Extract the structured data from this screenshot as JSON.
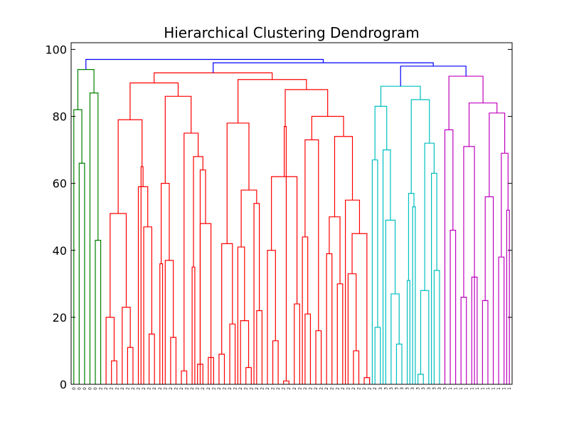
{
  "chart_data": {
    "type": "dendrogram",
    "title": "Hierarchical Clustering Dendrogram",
    "xlabel": "",
    "ylabel": "",
    "ylim": [
      0,
      102
    ],
    "yticks": [
      0,
      20,
      40,
      60,
      80,
      100
    ],
    "grid": false,
    "leaf_labels": [
      "0",
      "0",
      "0",
      "0",
      "0",
      "2",
      "2",
      "2",
      "2",
      "2",
      "2",
      "2",
      "2",
      "2",
      "2",
      "2",
      "2",
      "2",
      "2",
      "2",
      "2",
      "2",
      "2",
      "2",
      "2",
      "2",
      "2",
      "2",
      "2",
      "2",
      "2",
      "2",
      "2",
      "2",
      "2",
      "2",
      "2",
      "2",
      "2",
      "2",
      "2",
      "2",
      "2",
      "2",
      "2",
      "2",
      "2",
      "2",
      "2",
      "2",
      "2",
      "2",
      "2",
      "2",
      "2",
      "2",
      "2",
      "3",
      "3",
      "3",
      "3",
      "3",
      "3",
      "3",
      "3",
      "3",
      "3",
      "3",
      "3",
      "3",
      "1",
      "1",
      "1",
      "1",
      "1",
      "1",
      "1",
      "1",
      "1",
      "1",
      "1",
      "1"
    ],
    "cluster_colors": {
      "0": "#008000",
      "2": "#ff0000",
      "3": "#00bfbf",
      "1": "#bf00bf",
      "above": "#0000ff"
    },
    "merges": [
      {
        "h": 66,
        "a": 1,
        "b": 2,
        "color": "0"
      },
      {
        "h": 82,
        "a": 0,
        "b": "m0",
        "color": "0"
      },
      {
        "h": 43,
        "a": 4,
        "b": 5,
        "color": "0"
      },
      {
        "h": 87,
        "a": 3,
        "b": "m2",
        "color": "0"
      },
      {
        "h": 94,
        "a": "m1",
        "b": "m3",
        "color": "0"
      },
      {
        "h": 7,
        "a": 7,
        "b": 8,
        "color": "2"
      },
      {
        "h": 20,
        "a": 6,
        "b": "m5",
        "color": "2"
      },
      {
        "h": 11,
        "a": 10,
        "b": 11,
        "color": "2"
      },
      {
        "h": 23,
        "a": 9,
        "b": "m7",
        "color": "2"
      },
      {
        "h": 51,
        "a": "m6",
        "b": "m8",
        "color": "2"
      },
      {
        "h": 15,
        "a": 14,
        "b": 15,
        "color": "2"
      },
      {
        "h": 47,
        "a": 13,
        "b": "m10",
        "color": "2"
      },
      {
        "h": 59,
        "a": 12,
        "b": "m11",
        "color": "2"
      },
      {
        "h": 65,
        "a": 12.5,
        "b": "m12",
        "color": "2"
      },
      {
        "h": 79,
        "a": "m9",
        "b": "m13",
        "color": "2"
      },
      {
        "h": 14,
        "a": 18,
        "b": 19,
        "color": "2"
      },
      {
        "h": 37,
        "a": 17,
        "b": "m15",
        "color": "2"
      },
      {
        "h": 36,
        "a": 16,
        "b": 16.5,
        "color": "2"
      },
      {
        "h": 60,
        "a": "m17",
        "b": "m16",
        "color": "2"
      },
      {
        "h": 4,
        "a": 20,
        "b": 21,
        "color": "2"
      },
      {
        "h": 35,
        "a": 22,
        "b": 22.5,
        "color": "2"
      },
      {
        "h": 6,
        "a": 23,
        "b": 24,
        "color": "2"
      },
      {
        "h": 8,
        "a": 25,
        "b": 26,
        "color": "2"
      },
      {
        "h": 29,
        "a": 25.5,
        "b": "m22",
        "color": "2"
      },
      {
        "h": 48,
        "a": "m21",
        "b": "m23",
        "color": "2"
      },
      {
        "h": 64,
        "a": 23.5,
        "b": "m24",
        "color": "2"
      },
      {
        "h": 68,
        "a": "m20",
        "b": "m25",
        "color": "2"
      },
      {
        "h": 75,
        "a": "m19",
        "b": "m26",
        "color": "2"
      },
      {
        "h": 86,
        "a": "m18",
        "b": "m27",
        "color": "2"
      },
      {
        "h": 90,
        "a": "m14",
        "b": "m28",
        "color": "2"
      },
      {
        "h": 9,
        "a": 27,
        "b": 28,
        "color": "2"
      },
      {
        "h": 18,
        "a": 29,
        "b": 30,
        "color": "2"
      },
      {
        "h": 42,
        "a": "m30",
        "b": "m31",
        "color": "2"
      },
      {
        "h": 5,
        "a": 32,
        "b": 33,
        "color": "2"
      },
      {
        "h": 19,
        "a": 31,
        "b": "m33",
        "color": "2"
      },
      {
        "h": 41,
        "a": 30.5,
        "b": "m34",
        "color": "2"
      },
      {
        "h": 22,
        "a": 34,
        "b": 35,
        "color": "2"
      },
      {
        "h": 54,
        "a": 33.5,
        "b": "m36",
        "color": "2"
      },
      {
        "h": 58,
        "a": "m35",
        "b": "m37",
        "color": "2"
      },
      {
        "h": 78,
        "a": "m32",
        "b": "m38",
        "color": "2"
      },
      {
        "h": 13,
        "a": 37,
        "b": 38,
        "color": "2"
      },
      {
        "h": 1,
        "a": 39,
        "b": 40,
        "color": "2"
      },
      {
        "h": 40,
        "a": 36,
        "b": "m40",
        "color": "2"
      },
      {
        "h": 24,
        "a": 41,
        "b": 42,
        "color": "2"
      },
      {
        "h": 62,
        "a": "m42",
        "b": "m43",
        "color": "2"
      },
      {
        "h": 77,
        "a": "m41",
        "b": "m44",
        "color": "2"
      },
      {
        "h": 21,
        "a": 43,
        "b": 44,
        "color": "2"
      },
      {
        "h": 16,
        "a": 45,
        "b": 46,
        "color": "2"
      },
      {
        "h": 44,
        "a": "m46",
        "b": 42.5,
        "color": "2"
      },
      {
        "h": 73,
        "a": "m48",
        "b": "m47",
        "color": "2"
      },
      {
        "h": 39,
        "a": 47,
        "b": 48,
        "color": "2"
      },
      {
        "h": 30,
        "a": 49,
        "b": 50,
        "color": "2"
      },
      {
        "h": 50,
        "a": "m50",
        "b": "m51",
        "color": "2"
      },
      {
        "h": 10,
        "a": 52,
        "b": 53,
        "color": "2"
      },
      {
        "h": 33,
        "a": 51,
        "b": "m53",
        "color": "2"
      },
      {
        "h": 2,
        "a": 54,
        "b": 55,
        "color": "2"
      },
      {
        "h": 45,
        "a": "m54",
        "b": "m55",
        "color": "2"
      },
      {
        "h": 55,
        "a": 50.5,
        "b": "m56",
        "color": "2"
      },
      {
        "h": 74,
        "a": "m52",
        "b": "m57",
        "color": "2"
      },
      {
        "h": 80,
        "a": "m49",
        "b": "m58",
        "color": "2"
      },
      {
        "h": 88,
        "a": "m45",
        "b": "m59",
        "color": "2"
      },
      {
        "h": 91,
        "a": "m39",
        "b": "m60",
        "color": "2"
      },
      {
        "h": 93,
        "a": "m29",
        "b": "m61",
        "color": "2"
      },
      {
        "h": 17,
        "a": 56,
        "b": 57,
        "color": "3"
      },
      {
        "h": 67,
        "a": 55.5,
        "b": "m63",
        "color": "3"
      },
      {
        "h": 12,
        "a": 60,
        "b": 61,
        "color": "3"
      },
      {
        "h": 27,
        "a": 59,
        "b": "m65",
        "color": "3"
      },
      {
        "h": 49,
        "a": 58,
        "b": "m66",
        "color": "3"
      },
      {
        "h": 70,
        "a": 57.5,
        "b": "m67",
        "color": "3"
      },
      {
        "h": 83,
        "a": "m64",
        "b": "m68",
        "color": "3"
      },
      {
        "h": 31,
        "a": 62,
        "b": 62.5,
        "color": "3"
      },
      {
        "h": 53,
        "a": 63,
        "b": 63.5,
        "color": "3"
      },
      {
        "h": 57,
        "a": "m70",
        "b": "m71",
        "color": "3"
      },
      {
        "h": 3,
        "a": 64,
        "b": 65,
        "color": "3"
      },
      {
        "h": 28,
        "a": "m73",
        "b": 66,
        "color": "3"
      },
      {
        "h": 34,
        "a": 67,
        "b": 68,
        "color": "3"
      },
      {
        "h": 63,
        "a": 66.5,
        "b": "m75",
        "color": "3"
      },
      {
        "h": 72,
        "a": "m74",
        "b": "m76",
        "color": "3"
      },
      {
        "h": 85,
        "a": "m72",
        "b": "m77",
        "color": "3"
      },
      {
        "h": 89,
        "a": "m69",
        "b": "m78",
        "color": "3"
      },
      {
        "h": 46,
        "a": 70,
        "b": 71,
        "color": "1"
      },
      {
        "h": 76,
        "a": 69,
        "b": "m80",
        "color": "1"
      },
      {
        "h": 26,
        "a": 72,
        "b": 73,
        "color": "1"
      },
      {
        "h": 32,
        "a": 74,
        "b": 75,
        "color": "1"
      },
      {
        "h": 61,
        "a": 74.5,
        "b": "m83",
        "color": "1"
      },
      {
        "h": 71,
        "a": "m82",
        "b": "m84",
        "color": "1"
      },
      {
        "h": 25,
        "a": 76,
        "b": 77,
        "color": "1"
      },
      {
        "h": 56,
        "a": "m86",
        "b": 78,
        "color": "1"
      },
      {
        "h": 38,
        "a": 79,
        "b": 80,
        "color": "1"
      },
      {
        "h": 52,
        "a": 80.5,
        "b": 81,
        "color": "1"
      },
      {
        "h": 69,
        "a": "m88",
        "b": "m89",
        "color": "1"
      },
      {
        "h": 81,
        "a": "m87",
        "b": "m90",
        "color": "1"
      },
      {
        "h": 84,
        "a": "m85",
        "b": "m91",
        "color": "1"
      },
      {
        "h": 92,
        "a": "m81",
        "b": "m92",
        "color": "1"
      },
      {
        "h": 95,
        "a": "m79",
        "b": "m93",
        "color": "above"
      },
      {
        "h": 96,
        "a": "m62",
        "b": "m94",
        "color": "above"
      },
      {
        "h": 97,
        "a": "m4",
        "b": "m95",
        "color": "above"
      }
    ]
  }
}
